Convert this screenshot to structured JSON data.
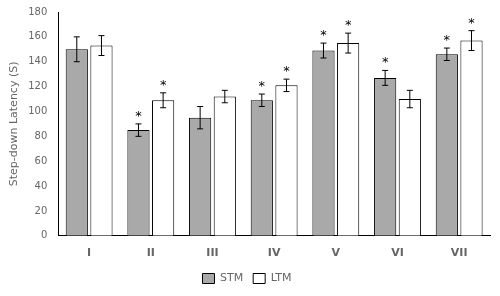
{
  "chart_data": {
    "type": "bar",
    "categories": [
      "I",
      "II",
      "III",
      "IV",
      "V",
      "VI",
      "VII"
    ],
    "ylabel": "Step-down Latency (S)",
    "ylim": [
      0,
      180
    ],
    "yticks": [
      0,
      20,
      40,
      60,
      80,
      100,
      120,
      140,
      160,
      180
    ],
    "grid": false,
    "legend": "bottom",
    "series": [
      {
        "name": "STM",
        "color": "#a9a9a9",
        "values": [
          150,
          85,
          95,
          109,
          149,
          127,
          146
        ],
        "errors": [
          10,
          5,
          9,
          5,
          6,
          6,
          5
        ],
        "annotations": [
          null,
          "*",
          null,
          "*",
          "*",
          "*",
          "*"
        ]
      },
      {
        "name": "LTM",
        "color": "#ffffff",
        "values": [
          153,
          109,
          112,
          121,
          155,
          110,
          157
        ],
        "errors": [
          8,
          6,
          5,
          5,
          8,
          7,
          8
        ],
        "annotations": [
          null,
          "*",
          null,
          "*",
          "*",
          null,
          "*"
        ]
      }
    ]
  }
}
